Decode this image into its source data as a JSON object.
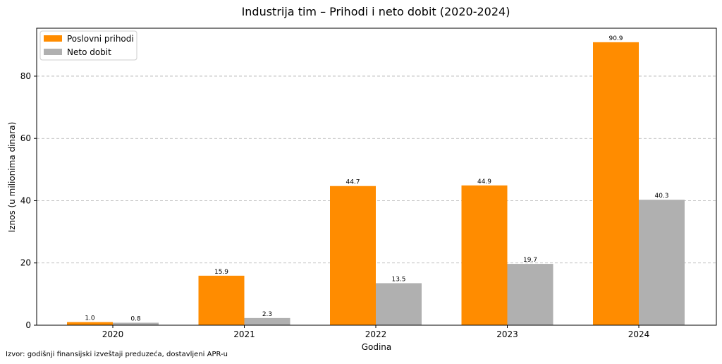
{
  "chart_data": {
    "type": "bar",
    "title": "Industrija tim – Prihodi i neto dobit (2020-2024)",
    "xlabel": "Godina",
    "ylabel": "Iznos (u milionima dinara)",
    "categories": [
      "2020",
      "2021",
      "2022",
      "2023",
      "2024"
    ],
    "series": [
      {
        "name": "Poslovni prihodi",
        "color": "#ff8c00",
        "values": [
          1.0,
          15.9,
          44.7,
          44.9,
          90.9
        ],
        "labels": [
          "1.0",
          "15.9",
          "44.7",
          "44.9",
          "90.9"
        ]
      },
      {
        "name": "Neto dobit",
        "color": "#b0b0b0",
        "values": [
          0.8,
          2.3,
          13.5,
          19.7,
          40.3
        ],
        "labels": [
          "0.8",
          "2.3",
          "13.5",
          "19.7",
          "40.3"
        ]
      }
    ],
    "ylim": [
      0,
      95.4
    ],
    "yticks": [
      0,
      20,
      40,
      60,
      80
    ],
    "ytick_labels": [
      "0",
      "20",
      "40",
      "60",
      "80"
    ],
    "grid": "y-dashed",
    "legend_position": "top-left"
  },
  "footnote": "Izvor: godišnji finansijski izveštaji preduzeća, dostavljeni APR-u"
}
